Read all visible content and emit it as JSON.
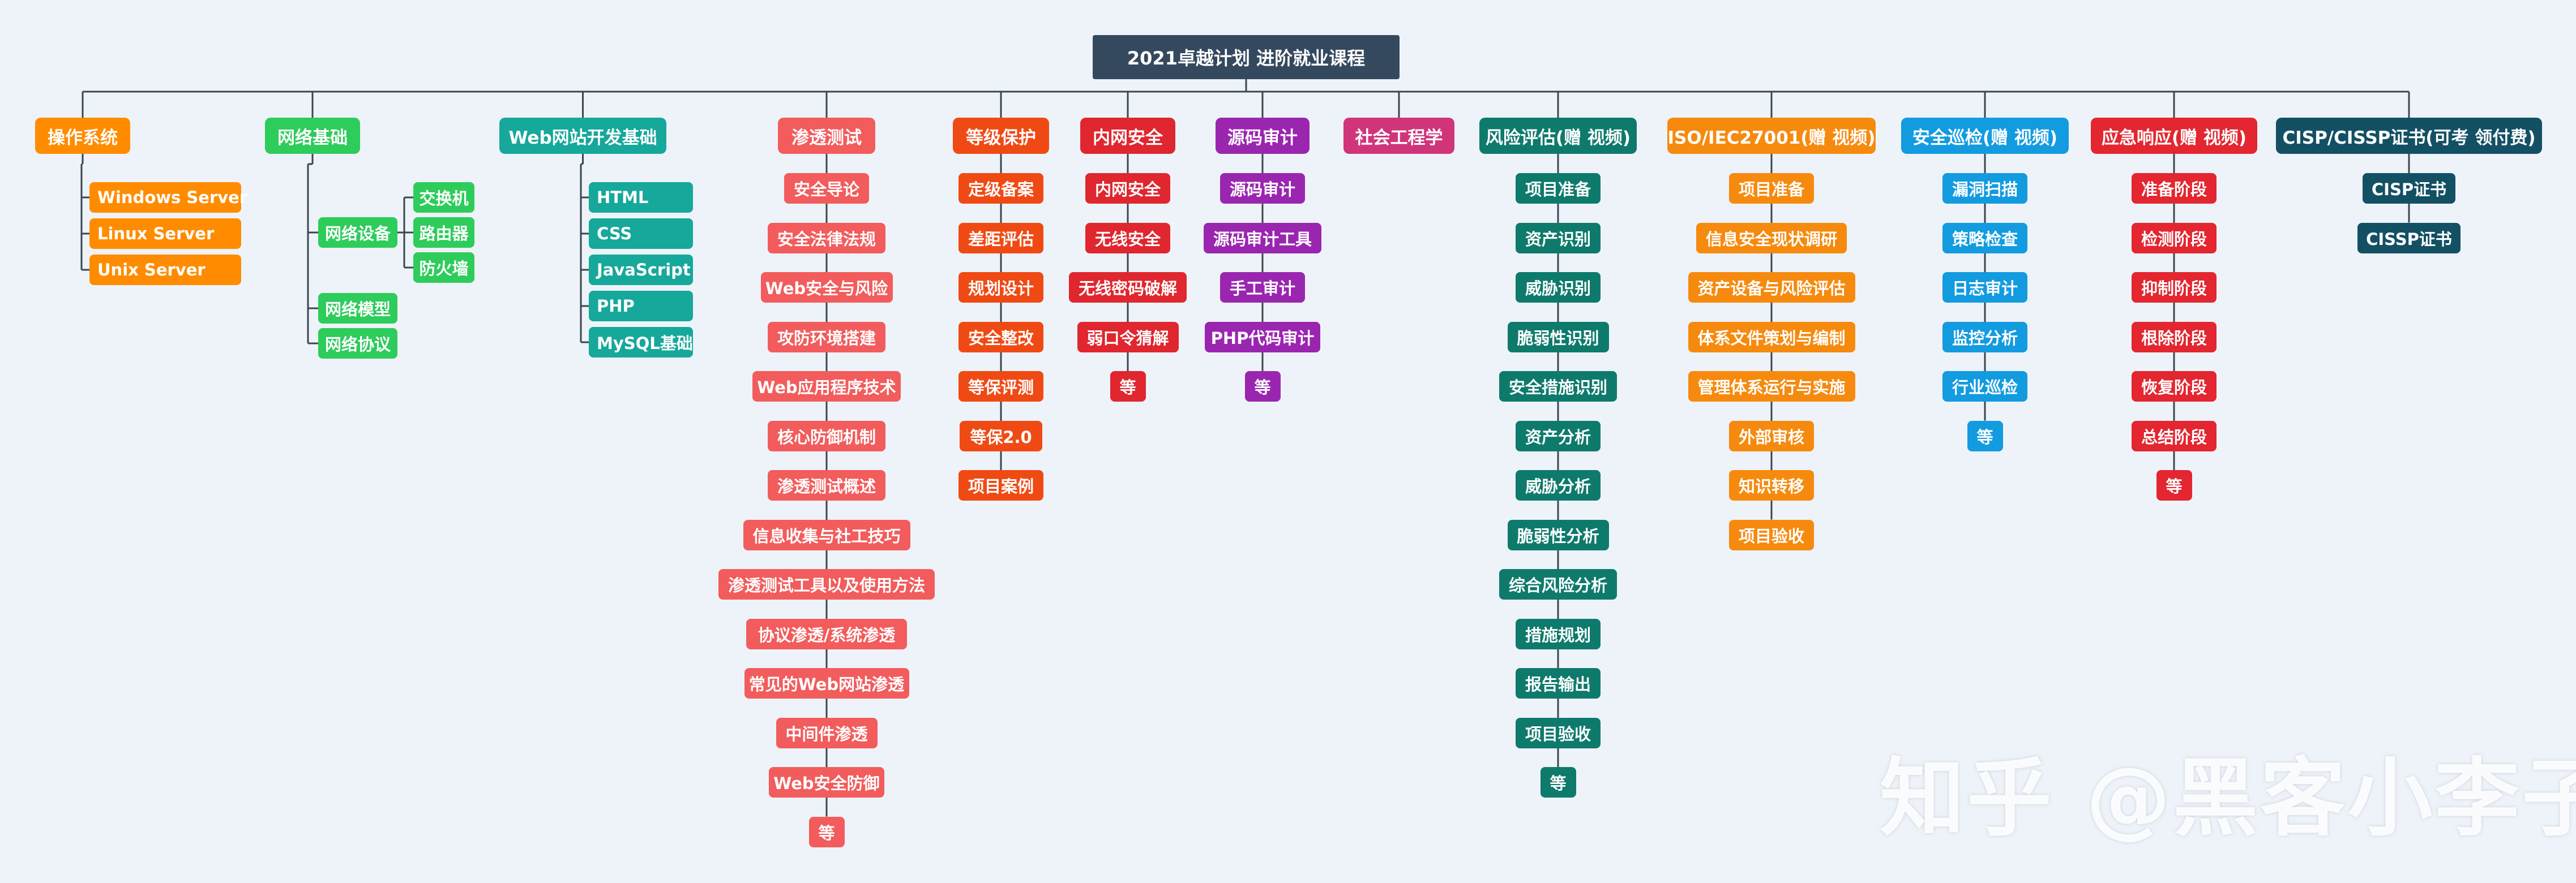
{
  "title": "2021卓越计划 进阶就业课程",
  "watermark": "知乎 @黑客小李子",
  "colors": {
    "root": "#34495e",
    "line": "#3a4750",
    "orange": "#ff8c00",
    "green": "#2ecc5b",
    "teal": "#16a89a",
    "salmon": "#f25c5c",
    "redorange": "#f04a14",
    "red": "#e0262e",
    "purple": "#9a26b0",
    "magenta": "#d0357a",
    "darkteal": "#0e7a6c",
    "amber": "#f68a0e",
    "sky": "#139be0",
    "crimson": "#e3262f",
    "navy": "#135064"
  },
  "branches": [
    {
      "id": "os",
      "label": "操作系统",
      "color": "orange",
      "items": [
        "Windows Server",
        "Linux Server",
        "Unix Server"
      ]
    },
    {
      "id": "net",
      "label": "网络基础",
      "color": "green",
      "items": [
        "网络设备",
        "网络模型",
        "网络协议"
      ],
      "subitems": [
        "交换机",
        "路由器",
        "防火墙"
      ]
    },
    {
      "id": "web",
      "label": "Web网站开发基础",
      "color": "teal",
      "items": [
        "HTML",
        "CSS",
        "JavaScript",
        "PHP",
        "MySQL基础"
      ]
    },
    {
      "id": "pentest",
      "label": "渗透测试",
      "color": "salmon",
      "items": [
        "安全导论",
        "安全法律法规",
        "Web安全与风险",
        "攻防环境搭建",
        "Web应用程序技术",
        "核心防御机制",
        "渗透测试概述",
        "信息收集与社工技巧",
        "渗透测试工具以及使用方法",
        "协议渗透/系统渗透",
        "常见的Web网站渗透",
        "中间件渗透",
        "Web安全防御",
        "等"
      ]
    },
    {
      "id": "dengbao",
      "label": "等级保护",
      "color": "redorange",
      "items": [
        "定级备案",
        "差距评估",
        "规划设计",
        "安全整改",
        "等保评测",
        "等保2.0",
        "项目案例"
      ]
    },
    {
      "id": "intranet",
      "label": "内网安全",
      "color": "red",
      "items": [
        "内网安全",
        "无线安全",
        "无线密码破解",
        "弱口令猜解",
        "等"
      ]
    },
    {
      "id": "audit",
      "label": "源码审计",
      "color": "purple",
      "items": [
        "源码审计",
        "源码审计工具",
        "手工审计",
        "PHP代码审计",
        "等"
      ]
    },
    {
      "id": "social",
      "label": "社会工程学",
      "color": "magenta",
      "items": []
    },
    {
      "id": "risk",
      "label": "风险评估(赠 视频)",
      "color": "darkteal",
      "items": [
        "项目准备",
        "资产识别",
        "威胁识别",
        "脆弱性识别",
        "安全措施识别",
        "资产分析",
        "威胁分析",
        "脆弱性分析",
        "综合风险分析",
        "措施规划",
        "报告输出",
        "项目验收",
        "等"
      ]
    },
    {
      "id": "iso",
      "label": "ISO/IEC27001(赠 视频)",
      "color": "amber",
      "items": [
        "项目准备",
        "信息安全现状调研",
        "资产设备与风险评估",
        "体系文件策划与编制",
        "管理体系运行与实施",
        "外部审核",
        "知识转移",
        "项目验收"
      ]
    },
    {
      "id": "patrol",
      "label": "安全巡检(赠 视频)",
      "color": "sky",
      "items": [
        "漏洞扫描",
        "策略检查",
        "日志审计",
        "监控分析",
        "行业巡检",
        "等"
      ]
    },
    {
      "id": "emergency",
      "label": "应急响应(赠 视频)",
      "color": "crimson",
      "items": [
        "准备阶段",
        "检测阶段",
        "抑制阶段",
        "根除阶段",
        "恢复阶段",
        "总结阶段",
        "等"
      ]
    },
    {
      "id": "cisp",
      "label": "CISP/CISSP证书(可考 领付费)",
      "color": "navy",
      "items": [
        "CISP证书",
        "CISSP证书"
      ]
    }
  ]
}
